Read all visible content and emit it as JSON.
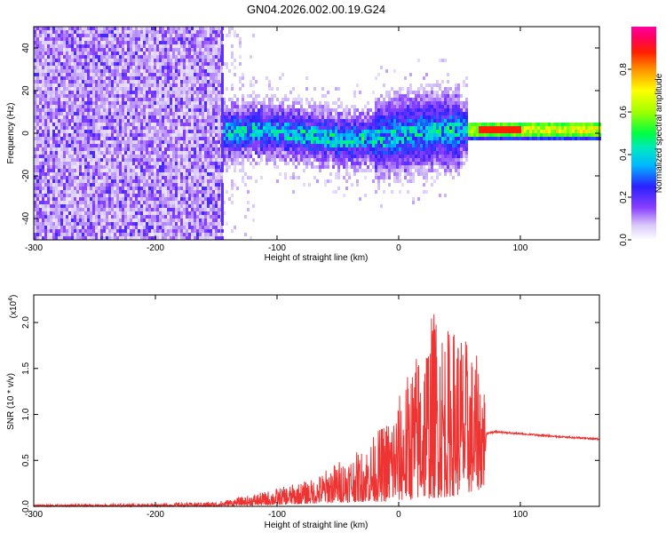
{
  "title": "GN04.2026.002.00.19.G24",
  "chart_data": [
    {
      "type": "heatmap",
      "name": "spectrogram",
      "xlabel": "Height of straight line (km)",
      "ylabel": "Frequency (Hz)",
      "xlim": [
        -300,
        165
      ],
      "ylim": [
        -50,
        50
      ],
      "xticks": [
        -300,
        -200,
        -100,
        0,
        100
      ],
      "yticks": [
        -40,
        -20,
        0,
        20,
        40
      ],
      "colorbar": {
        "label": "Normalized spectral amplitude",
        "range": [
          0,
          1
        ],
        "ticks": [
          0.0,
          0.2,
          0.4,
          0.6,
          0.8
        ],
        "tick_labels": [
          "0.0",
          "0.2",
          "0.4",
          "0.6",
          "0.8"
        ]
      },
      "regions": [
        {
          "x": [
            -300,
            -145
          ],
          "description": "broadband noise across full frequency range",
          "amplitude": 0.15
        },
        {
          "x": [
            -145,
            55
          ],
          "center_hz": 0,
          "spread_hz": [
            -25,
            25
          ],
          "amplitude": 0.3
        },
        {
          "x": [
            55,
            165
          ],
          "center_hz": 2,
          "spread_hz": [
            -2,
            4
          ],
          "amplitude": 0.9
        }
      ]
    },
    {
      "type": "line",
      "name": "snr",
      "xlabel": "Height of straight line (km)",
      "ylabel": "SNR (10 * v/v)",
      "multiplier": "(x10",
      "multiplier_exp": "4",
      "multiplier_close": ")",
      "xlim": [
        -300,
        165
      ],
      "ylim": [
        0,
        2.3
      ],
      "xticks": [
        -300,
        -200,
        -100,
        0,
        100
      ],
      "yticks": [
        0.0,
        0.5,
        1.0,
        1.5,
        2.0
      ],
      "ytick_labels": [
        "0.0",
        "0.5",
        "1.0",
        "1.5",
        "2.0"
      ],
      "color": "#ee3333",
      "envelope": {
        "x": [
          -300,
          -200,
          -150,
          -130,
          -110,
          -90,
          -70,
          -50,
          -30,
          -10,
          0,
          10,
          20,
          30,
          40,
          50,
          60,
          70,
          72,
          80,
          100,
          130,
          165
        ],
        "max": [
          0.02,
          0.03,
          0.05,
          0.1,
          0.16,
          0.23,
          0.3,
          0.5,
          0.62,
          0.95,
          1.2,
          1.55,
          1.85,
          2.2,
          1.95,
          2.0,
          1.7,
          1.55,
          0.8,
          0.82,
          0.8,
          0.77,
          0.74
        ],
        "min": [
          0.0,
          0.0,
          0.0,
          0.01,
          0.01,
          0.02,
          0.03,
          0.04,
          0.05,
          0.05,
          0.06,
          0.07,
          0.08,
          0.09,
          0.1,
          0.12,
          0.15,
          0.2,
          0.78,
          0.8,
          0.78,
          0.75,
          0.72
        ]
      }
    }
  ]
}
